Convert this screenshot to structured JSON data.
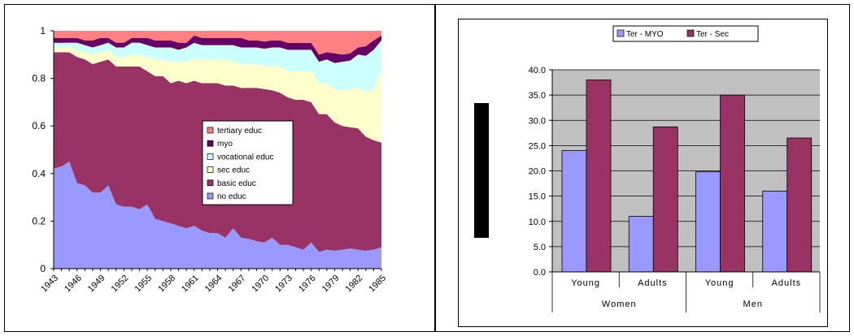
{
  "chart_data": [
    {
      "type": "area",
      "stacked": true,
      "title": "",
      "xlabel": "",
      "ylabel": "",
      "x": [
        1943,
        1944,
        1945,
        1946,
        1947,
        1948,
        1949,
        1950,
        1951,
        1952,
        1953,
        1954,
        1955,
        1956,
        1957,
        1958,
        1959,
        1960,
        1961,
        1962,
        1963,
        1964,
        1965,
        1966,
        1967,
        1968,
        1969,
        1970,
        1971,
        1972,
        1973,
        1974,
        1975,
        1976,
        1977,
        1978,
        1979,
        1980,
        1981,
        1982,
        1983,
        1984,
        1985
      ],
      "x_tick_labels": [
        "1943",
        "1946",
        "1949",
        "1952",
        "1955",
        "1958",
        "1961",
        "1964",
        "1967",
        "1970",
        "1973",
        "1976",
        "1979",
        "1982",
        "1985"
      ],
      "ylim": [
        0,
        1
      ],
      "y_tick_labels": [
        "0",
        "0.2",
        "0.4",
        "0.6",
        "0.8",
        "1"
      ],
      "legend_position": "center-right",
      "series": [
        {
          "name": "no educ",
          "color": "#9999FF",
          "values": [
            0.42,
            0.43,
            0.45,
            0.36,
            0.35,
            0.32,
            0.32,
            0.35,
            0.27,
            0.26,
            0.26,
            0.25,
            0.27,
            0.21,
            0.2,
            0.19,
            0.18,
            0.17,
            0.18,
            0.16,
            0.15,
            0.15,
            0.13,
            0.17,
            0.13,
            0.125,
            0.115,
            0.11,
            0.13,
            0.1,
            0.1,
            0.09,
            0.08,
            0.11,
            0.07,
            0.08,
            0.075,
            0.08,
            0.085,
            0.08,
            0.075,
            0.08,
            0.09
          ]
        },
        {
          "name": "basic educ",
          "color": "#993366",
          "values": [
            0.49,
            0.48,
            0.46,
            0.53,
            0.53,
            0.54,
            0.55,
            0.53,
            0.58,
            0.59,
            0.59,
            0.6,
            0.56,
            0.6,
            0.61,
            0.59,
            0.61,
            0.61,
            0.61,
            0.62,
            0.63,
            0.63,
            0.64,
            0.6,
            0.63,
            0.635,
            0.645,
            0.645,
            0.62,
            0.64,
            0.62,
            0.62,
            0.63,
            0.59,
            0.58,
            0.57,
            0.54,
            0.52,
            0.51,
            0.51,
            0.48,
            0.46,
            0.44
          ]
        },
        {
          "name": "sec educ",
          "color": "#FFFFCC",
          "values": [
            0.02,
            0.02,
            0.02,
            0.03,
            0.03,
            0.04,
            0.04,
            0.04,
            0.04,
            0.04,
            0.05,
            0.05,
            0.06,
            0.07,
            0.07,
            0.09,
            0.08,
            0.09,
            0.09,
            0.1,
            0.1,
            0.1,
            0.11,
            0.1,
            0.1,
            0.1,
            0.1,
            0.1,
            0.1,
            0.11,
            0.11,
            0.12,
            0.12,
            0.13,
            0.13,
            0.13,
            0.14,
            0.15,
            0.16,
            0.17,
            0.19,
            0.21,
            0.31
          ]
        },
        {
          "name": "vocational educ",
          "color": "#CCFFFF",
          "values": [
            0.02,
            0.02,
            0.02,
            0.03,
            0.03,
            0.03,
            0.03,
            0.03,
            0.04,
            0.04,
            0.05,
            0.05,
            0.05,
            0.05,
            0.05,
            0.06,
            0.05,
            0.06,
            0.07,
            0.06,
            0.06,
            0.06,
            0.06,
            0.07,
            0.07,
            0.07,
            0.07,
            0.07,
            0.08,
            0.08,
            0.09,
            0.09,
            0.09,
            0.09,
            0.09,
            0.1,
            0.11,
            0.12,
            0.12,
            0.14,
            0.15,
            0.17,
            0.12
          ]
        },
        {
          "name": "myo",
          "color": "#660066",
          "values": [
            0.02,
            0.02,
            0.02,
            0.02,
            0.02,
            0.03,
            0.03,
            0.02,
            0.02,
            0.02,
            0.02,
            0.02,
            0.03,
            0.03,
            0.03,
            0.03,
            0.03,
            0.02,
            0.03,
            0.03,
            0.03,
            0.03,
            0.03,
            0.03,
            0.04,
            0.03,
            0.03,
            0.03,
            0.03,
            0.03,
            0.03,
            0.03,
            0.03,
            0.03,
            0.03,
            0.03,
            0.04,
            0.03,
            0.03,
            0.03,
            0.04,
            0.04,
            0.02
          ]
        },
        {
          "name": "tertiary educ",
          "color": "#FF8080",
          "values": [
            0.03,
            0.03,
            0.03,
            0.03,
            0.04,
            0.04,
            0.03,
            0.03,
            0.05,
            0.05,
            0.03,
            0.03,
            0.03,
            0.04,
            0.04,
            0.04,
            0.05,
            0.05,
            0.02,
            0.03,
            0.03,
            0.03,
            0.03,
            0.03,
            0.03,
            0.04,
            0.04,
            0.045,
            0.04,
            0.04,
            0.05,
            0.05,
            0.05,
            0.05,
            0.1,
            0.09,
            0.095,
            0.1,
            0.095,
            0.07,
            0.065,
            0.04,
            0.02
          ]
        }
      ]
    },
    {
      "type": "bar",
      "title": "",
      "xlabel": "",
      "ylabel": "",
      "ylim": [
        0,
        40
      ],
      "y_tick_labels": [
        "0.0",
        "5.0",
        "10.0",
        "15.0",
        "20.0",
        "25.0",
        "30.0",
        "35.0",
        "40.0"
      ],
      "grid": true,
      "plot_background": "#C0C0C0",
      "legend_position": "top",
      "categories": [
        "Young",
        "Adults",
        "Young",
        "Adults"
      ],
      "groups": [
        {
          "label": "Women",
          "span": 2
        },
        {
          "label": "Men",
          "span": 2
        }
      ],
      "series": [
        {
          "name": "Ter - MYO",
          "color": "#9999FF",
          "values": [
            24.0,
            11.0,
            19.8,
            16.0
          ]
        },
        {
          "name": "Ter - Sec",
          "color": "#993366",
          "values": [
            38.0,
            28.7,
            35.0,
            26.5
          ]
        }
      ]
    }
  ]
}
